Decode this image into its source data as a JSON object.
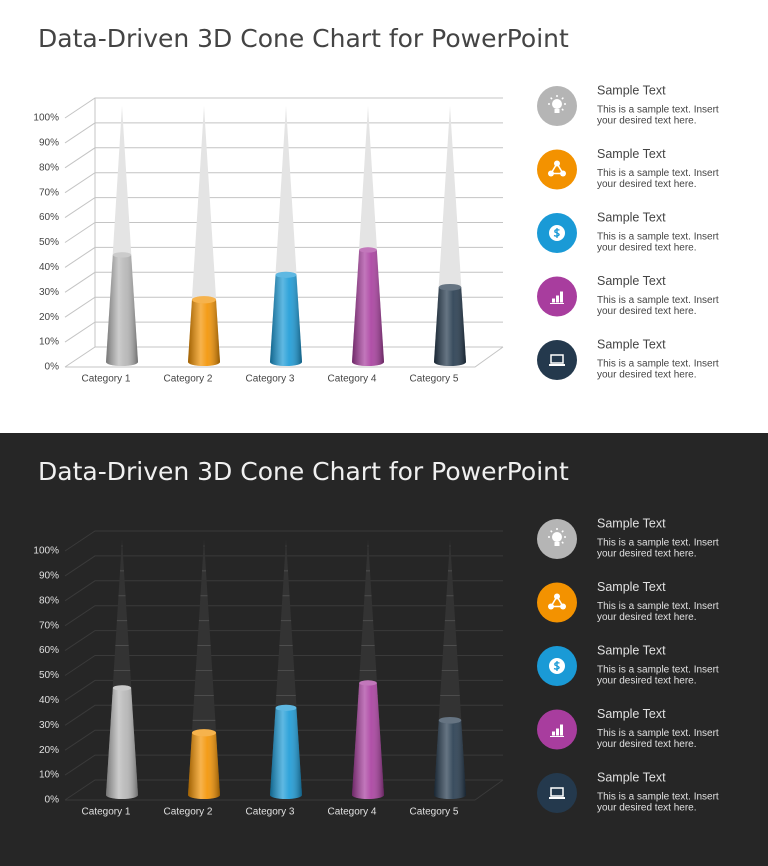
{
  "chart_data": [
    {
      "type": "cone",
      "theme": "light",
      "background": "#ffffff",
      "title": "Data-Driven 3D Cone Chart for PowerPoint",
      "categories": [
        "Category 1",
        "Category 2",
        "Category 3",
        "Category 4",
        "Category 5"
      ],
      "values": [
        43,
        25,
        35,
        45,
        30
      ],
      "colors": [
        "#b5b5b5",
        "#f39200",
        "#1a9ad6",
        "#a83d9e",
        "#24394d"
      ],
      "ylim": [
        0,
        100
      ],
      "yticks": [
        {
          "value": 0,
          "label": "0%"
        },
        {
          "value": 10,
          "label": "10%"
        },
        {
          "value": 20,
          "label": "20%"
        },
        {
          "value": 30,
          "label": "30%"
        },
        {
          "value": 40,
          "label": "40%"
        },
        {
          "value": 50,
          "label": "50%"
        },
        {
          "value": 60,
          "label": "60%"
        },
        {
          "value": 70,
          "label": "70%"
        },
        {
          "value": 80,
          "label": "80%"
        },
        {
          "value": 90,
          "label": "90%"
        },
        {
          "value": 100,
          "label": "100%"
        }
      ],
      "grid": true
    },
    {
      "type": "cone",
      "theme": "dark",
      "background": "#262626",
      "title": "Data-Driven 3D Cone Chart for PowerPoint",
      "categories": [
        "Category 1",
        "Category 2",
        "Category 3",
        "Category 4",
        "Category 5"
      ],
      "values": [
        43,
        25,
        35,
        45,
        30
      ],
      "colors": [
        "#b5b5b5",
        "#f39200",
        "#1a9ad6",
        "#a83d9e",
        "#24394d"
      ],
      "ylim": [
        0,
        100
      ],
      "yticks": [
        {
          "value": 0,
          "label": "0%"
        },
        {
          "value": 10,
          "label": "10%"
        },
        {
          "value": 20,
          "label": "20%"
        },
        {
          "value": 30,
          "label": "30%"
        },
        {
          "value": 40,
          "label": "40%"
        },
        {
          "value": 50,
          "label": "50%"
        },
        {
          "value": 60,
          "label": "60%"
        },
        {
          "value": 70,
          "label": "70%"
        },
        {
          "value": 80,
          "label": "80%"
        },
        {
          "value": 90,
          "label": "90%"
        },
        {
          "value": 100,
          "label": "100%"
        }
      ],
      "grid": true
    }
  ],
  "sidebars": [
    {
      "items": [
        {
          "title": "Sample Text",
          "text": [
            "This is a sample text. Insert",
            "your desired text here."
          ]
        },
        {
          "title": "Sample Text",
          "text": [
            "This is a sample text. Insert",
            "your desired text here."
          ]
        },
        {
          "title": "Sample Text",
          "text": [
            "This is a sample text. Insert",
            "your desired text here."
          ]
        },
        {
          "title": "Sample Text",
          "text": [
            "This is a sample text. Insert",
            "your desired text here."
          ]
        },
        {
          "title": "Sample Text",
          "text": [
            "This is a sample text. Insert",
            "your desired text here."
          ]
        }
      ]
    },
    {
      "items": [
        {
          "title": "Sample Text",
          "text": [
            "This is a sample text. Insert",
            "your desired text here."
          ]
        },
        {
          "title": "Sample Text",
          "text": [
            "This is a sample text. Insert",
            "your desired text here."
          ]
        },
        {
          "title": "Sample Text",
          "text": [
            "This is a sample text. Insert",
            "your desired text here."
          ]
        },
        {
          "title": "Sample Text",
          "text": [
            "This is a sample text. Insert",
            "your desired text here."
          ]
        },
        {
          "title": "Sample Text",
          "text": [
            "This is a sample text. Insert",
            "your desired text here."
          ]
        }
      ]
    }
  ]
}
